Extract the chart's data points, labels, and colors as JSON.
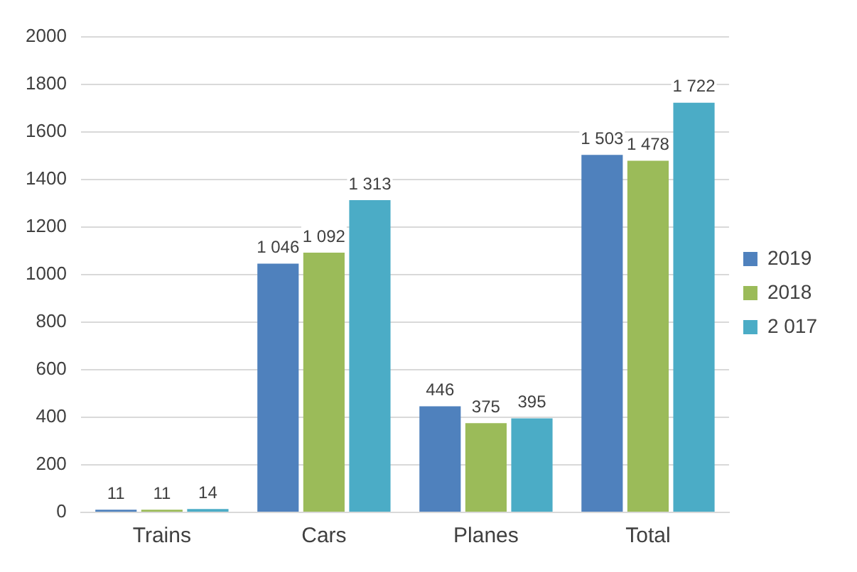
{
  "chart_data": {
    "type": "bar",
    "categories": [
      "Trains",
      "Cars",
      "Planes",
      "Total"
    ],
    "series": [
      {
        "name": "2019",
        "color": "#4f81bd",
        "values": [
          11,
          1046,
          446,
          1503
        ],
        "value_labels": [
          "11",
          "1 046",
          "446",
          "1 503"
        ]
      },
      {
        "name": "2018",
        "color": "#9bbb59",
        "values": [
          11,
          1092,
          375,
          1478
        ],
        "value_labels": [
          "11",
          "1 092",
          "375",
          "1 478"
        ]
      },
      {
        "name": "2 017",
        "color": "#4bacc6",
        "values": [
          14,
          1313,
          395,
          1722
        ],
        "value_labels": [
          "14",
          "1 313",
          "395",
          "1 722"
        ]
      }
    ],
    "ylim": [
      0,
      2000
    ],
    "yticks": [
      0,
      200,
      400,
      600,
      800,
      1000,
      1200,
      1400,
      1600,
      1800,
      2000
    ],
    "grid": "y",
    "legend": "right"
  }
}
